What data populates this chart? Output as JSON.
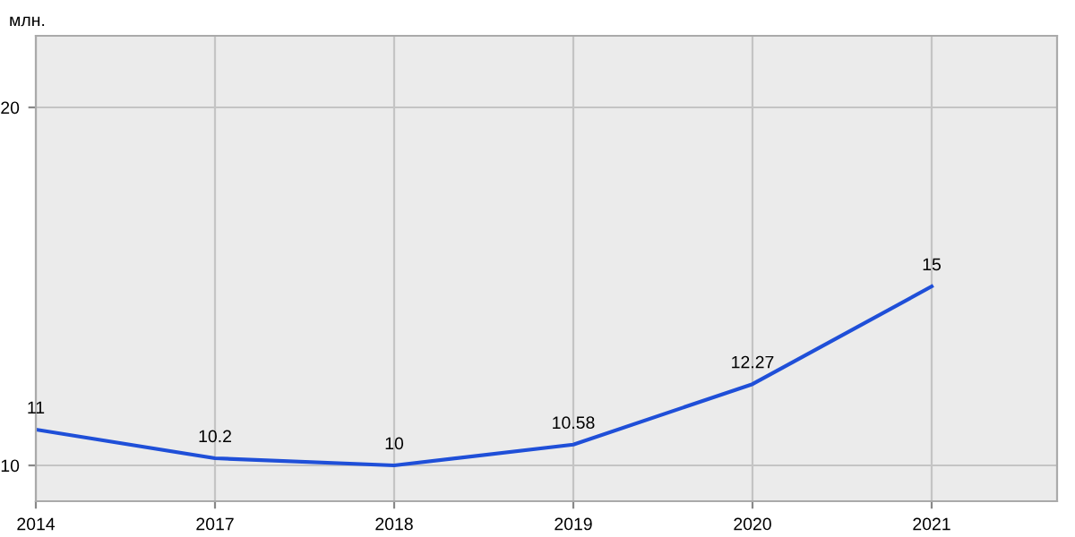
{
  "chart_data": {
    "type": "line",
    "ylabel": "млн.",
    "categories": [
      "2014",
      "2017",
      "2018",
      "2019",
      "2020",
      "2021"
    ],
    "series": [
      {
        "color": "#1f4fd8",
        "values": [
          11,
          10.2,
          10,
          10.58,
          12.27,
          15
        ]
      }
    ],
    "ylim": [
      9,
      22
    ],
    "yticks": [
      10,
      20
    ],
    "grid": true,
    "data_labels": true,
    "marker": "none",
    "line_style": "solid"
  }
}
